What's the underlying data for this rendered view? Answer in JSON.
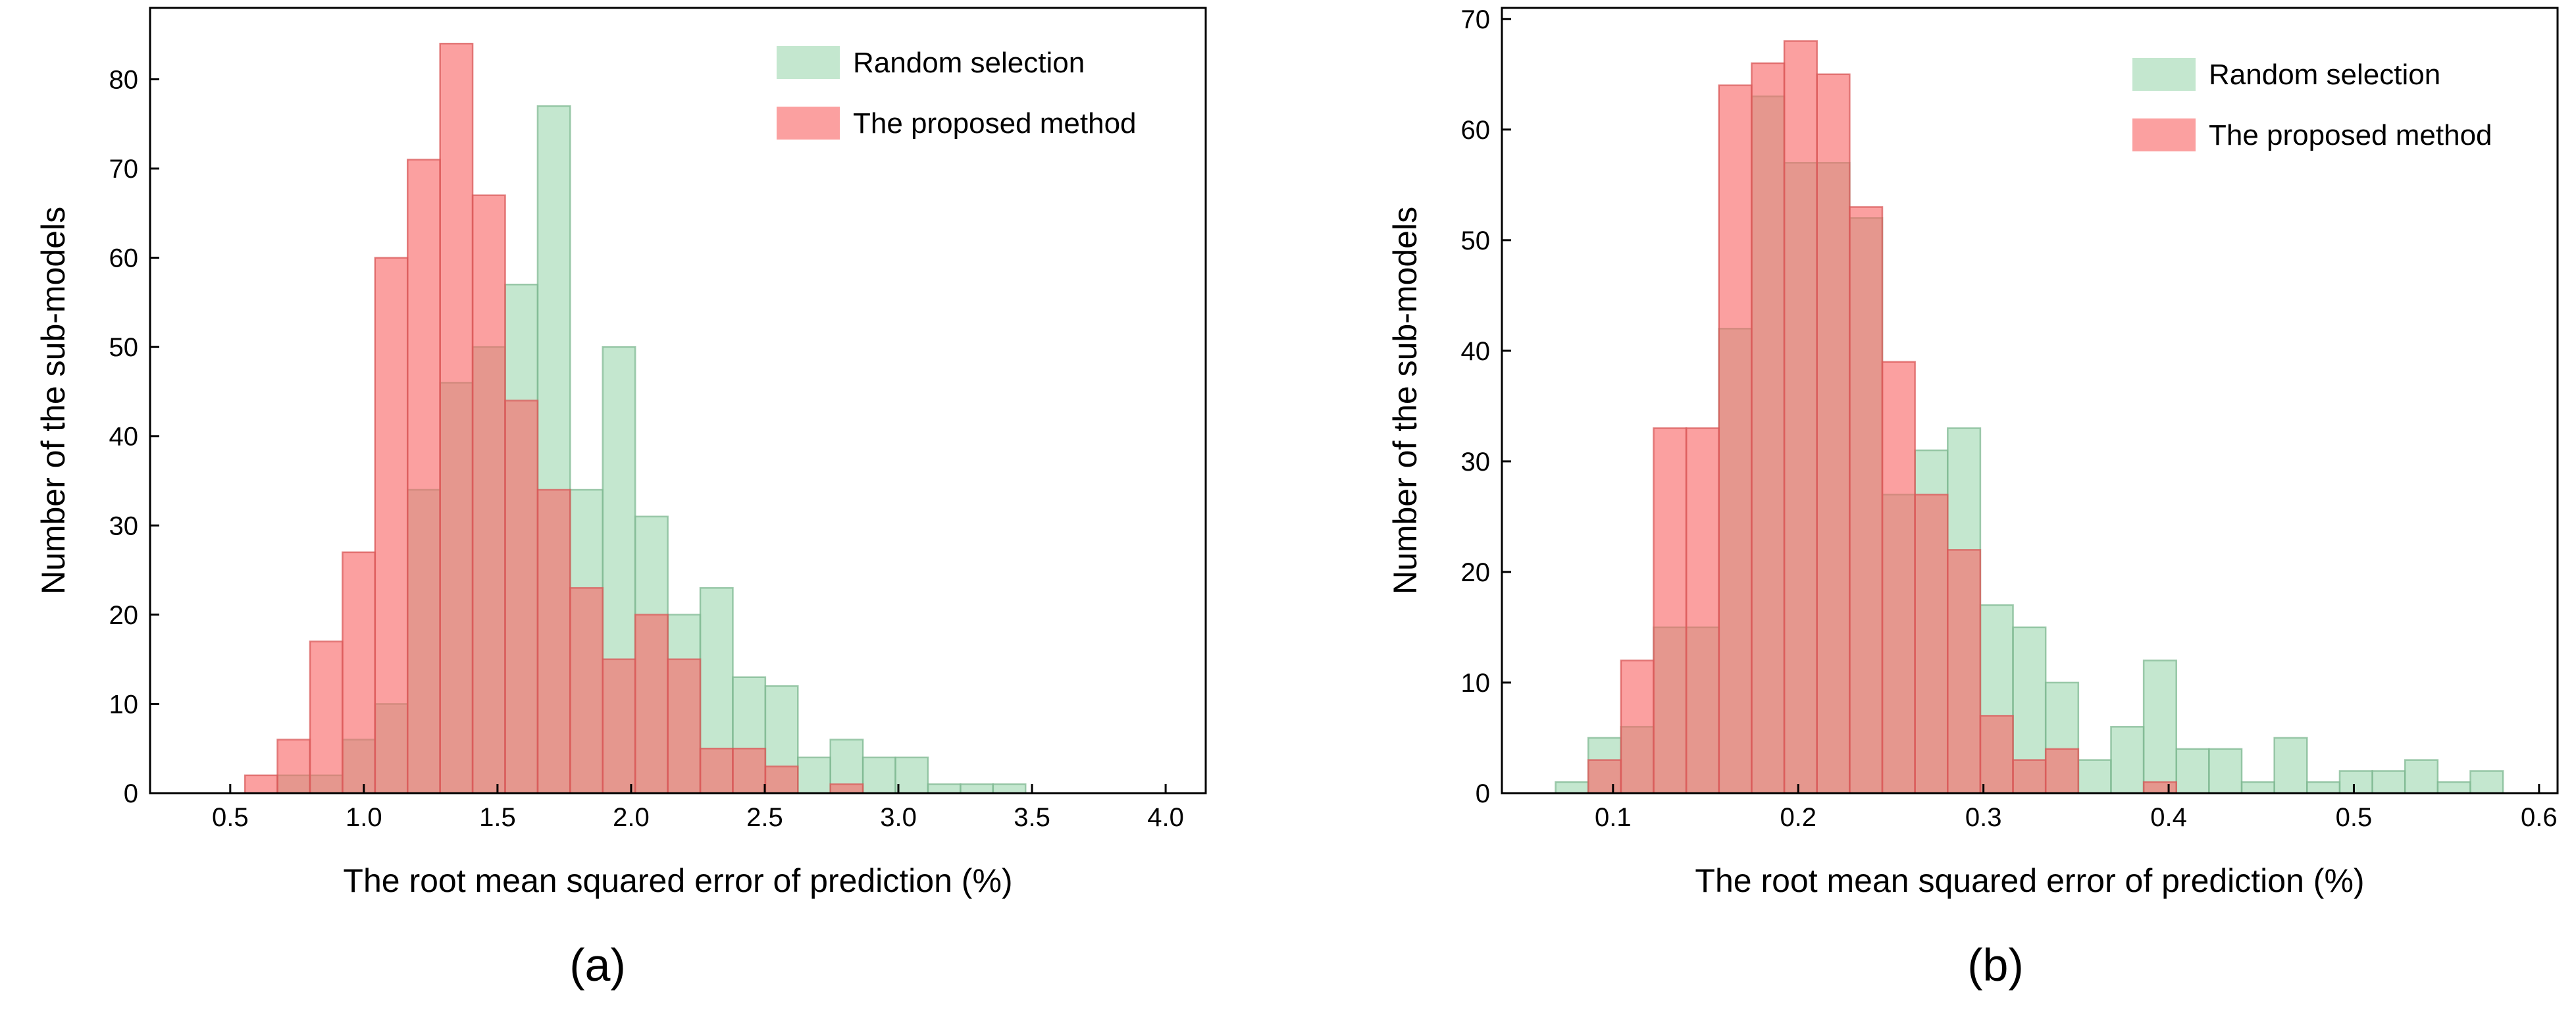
{
  "colors": {
    "random_fill": "#9fd8b1",
    "random_edge": "#7fb892",
    "proposed_fill": "#f96666",
    "proposed_edge": "#d95a5a"
  },
  "chart_data": [
    {
      "panel": "(a)",
      "type": "bar",
      "xlabel": "The root mean squared error of prediction (%)",
      "ylabel": "Number of the sub-models",
      "xlim": [
        0.2,
        4.15
      ],
      "ylim": [
        0,
        88
      ],
      "xticks": [
        0.5,
        1.0,
        1.5,
        2.0,
        2.5,
        3.0,
        3.5,
        4.0
      ],
      "xtick_labels": [
        "0.5",
        "1.0",
        "1.5",
        "2.0",
        "2.5",
        "3.0",
        "3.5",
        "4.0"
      ],
      "yticks": [
        0,
        10,
        20,
        30,
        40,
        50,
        60,
        70,
        80
      ],
      "ytick_labels": [
        "0",
        "10",
        "20",
        "30",
        "40",
        "50",
        "60",
        "70",
        "80"
      ],
      "legend_position": "top-right",
      "series": [
        {
          "name": "Random selection",
          "color_key": "random",
          "bin_start": 0.555,
          "bin_width": 0.1217,
          "values": [
            0,
            2,
            2,
            6,
            10,
            34,
            46,
            50,
            57,
            77,
            34,
            50,
            31,
            20,
            23,
            13,
            12,
            4,
            6,
            4,
            4,
            1,
            1,
            1,
            0,
            0
          ]
        },
        {
          "name": "The proposed method",
          "color_key": "proposed",
          "bin_start": 0.555,
          "bin_width": 0.1217,
          "values": [
            2,
            6,
            17,
            27,
            60,
            71,
            84,
            67,
            44,
            34,
            23,
            15,
            20,
            15,
            5,
            5,
            3,
            0,
            1,
            0,
            0,
            0,
            0,
            0,
            0,
            0
          ]
        }
      ]
    },
    {
      "panel": "(b)",
      "type": "bar",
      "xlabel": "The root mean squared error of prediction (%)",
      "ylabel": "Number of the sub-models",
      "xlim": [
        0.04,
        0.61
      ],
      "ylim": [
        0,
        71
      ],
      "xticks": [
        0.1,
        0.2,
        0.3,
        0.4,
        0.5,
        0.6
      ],
      "xtick_labels": [
        "0.1",
        "0.2",
        "0.3",
        "0.4",
        "0.5",
        "0.6"
      ],
      "yticks": [
        0,
        10,
        20,
        30,
        40,
        50,
        60,
        70
      ],
      "ytick_labels": [
        "0",
        "10",
        "20",
        "30",
        "40",
        "50",
        "60",
        "70"
      ],
      "legend_position": "top-right",
      "series": [
        {
          "name": "Random selection",
          "color_key": "random",
          "bin_start": 0.069,
          "bin_width": 0.01764,
          "values": [
            1,
            5,
            6,
            15,
            15,
            42,
            63,
            57,
            57,
            52,
            27,
            31,
            33,
            17,
            15,
            10,
            3,
            6,
            12,
            4,
            4,
            1,
            5,
            1,
            2,
            2,
            3,
            1,
            2
          ]
        },
        {
          "name": "The proposed method",
          "color_key": "proposed",
          "bin_start": 0.069,
          "bin_width": 0.01764,
          "values": [
            0,
            3,
            12,
            33,
            33,
            64,
            66,
            68,
            65,
            53,
            39,
            27,
            22,
            7,
            3,
            4,
            0,
            0,
            1,
            0,
            0,
            0,
            0,
            0,
            0,
            0,
            0,
            0,
            0
          ]
        }
      ]
    }
  ]
}
